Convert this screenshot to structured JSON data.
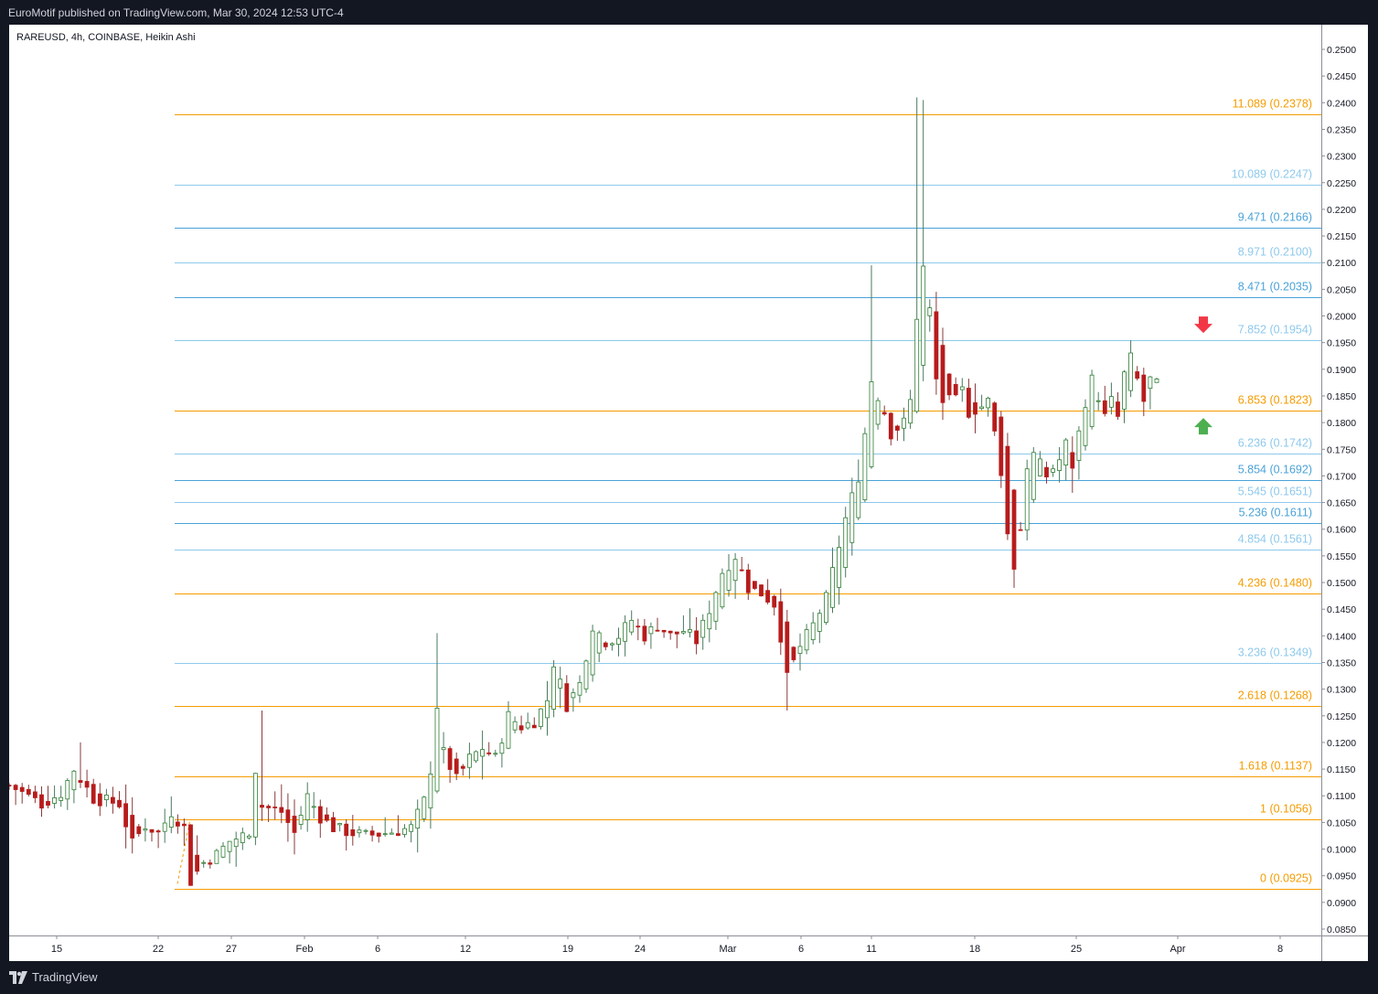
{
  "header": {
    "published": "EuroMotif published on TradingView.com, Mar 30, 2024 12:53 UTC-4"
  },
  "footer": {
    "brand": "TradingView"
  },
  "colors": {
    "up": "#26a69a",
    "down": "#ef5350",
    "candle_up_body": "#2e7d32",
    "candle_down_body": "#b71c1c",
    "fib_orange": "#f59c00",
    "fib_blue": "#4aa3d8",
    "fib_light_blue": "#8ec9ec",
    "arrow_down": "#f23645",
    "arrow_up": "#4caf50"
  },
  "chart_data": {
    "type": "candlestick",
    "title": "RAREUSD, 4h, COINBASE, Heikin Ashi",
    "ylim": [
      0.0825,
      0.2525
    ],
    "y_ticks": [
      "0.2500",
      "0.2450",
      "0.2400",
      "0.2350",
      "0.2300",
      "0.2250",
      "0.2200",
      "0.2150",
      "0.2100",
      "0.2050",
      "0.2000",
      "0.1950",
      "0.1900",
      "0.1850",
      "0.1800",
      "0.1750",
      "0.1700",
      "0.1650",
      "0.1600",
      "0.1550",
      "0.1500",
      "0.1450",
      "0.1400",
      "0.1350",
      "0.1300",
      "0.1250",
      "0.1200",
      "0.1150",
      "0.1100",
      "0.1050",
      "0.1000",
      "0.0950",
      "0.0900",
      "0.0850"
    ],
    "x_ticks": [
      "15",
      "22",
      "27",
      "Feb",
      "6",
      "12",
      "19",
      "24",
      "Mar",
      "6",
      "11",
      "18",
      "25",
      "Apr",
      "8"
    ],
    "fib_levels": [
      {
        "label": "11.089 (0.2378)",
        "value": 0.2378,
        "color": "orange"
      },
      {
        "label": "10.089 (0.2247)",
        "value": 0.2247,
        "color": "lightblue"
      },
      {
        "label": "9.471 (0.2166)",
        "value": 0.2166,
        "color": "blue"
      },
      {
        "label": "8.971 (0.2100)",
        "value": 0.21,
        "color": "lightblue"
      },
      {
        "label": "8.471 (0.2035)",
        "value": 0.2035,
        "color": "blue"
      },
      {
        "label": "7.852 (0.1954)",
        "value": 0.1954,
        "color": "lightblue"
      },
      {
        "label": "6.853 (0.1823)",
        "value": 0.1823,
        "color": "orange"
      },
      {
        "label": "6.236 (0.1742)",
        "value": 0.1742,
        "color": "lightblue"
      },
      {
        "label": "5.854 (0.1692)",
        "value": 0.1692,
        "color": "blue"
      },
      {
        "label": "5.545 (0.1651)",
        "value": 0.1651,
        "color": "lightblue"
      },
      {
        "label": "5.236 (0.1611)",
        "value": 0.1611,
        "color": "blue"
      },
      {
        "label": "4.854 (0.1561)",
        "value": 0.1561,
        "color": "lightblue"
      },
      {
        "label": "4.236 (0.1480)",
        "value": 0.148,
        "color": "orange"
      },
      {
        "label": "3.236 (0.1349)",
        "value": 0.1349,
        "color": "lightblue"
      },
      {
        "label": "2.618 (0.1268)",
        "value": 0.1268,
        "color": "orange"
      },
      {
        "label": "1.618 (0.1137)",
        "value": 0.1137,
        "color": "orange"
      },
      {
        "label": "1 (0.1056)",
        "value": 0.1056,
        "color": "orange"
      },
      {
        "label": "0 (0.0925)",
        "value": 0.0925,
        "color": "orange"
      }
    ],
    "price_path": [
      [
        0,
        0.112
      ],
      [
        5,
        0.1085
      ],
      [
        8,
        0.1105
      ],
      [
        10,
        0.115
      ],
      [
        13,
        0.1095
      ],
      [
        17,
        0.1085
      ],
      [
        19,
        0.101
      ],
      [
        21,
        0.1045
      ],
      [
        23,
        0.103
      ],
      [
        25,
        0.107
      ],
      [
        27,
        0.104
      ],
      [
        28,
        0.094
      ],
      [
        30,
        0.0975
      ],
      [
        32,
        0.099
      ],
      [
        34,
        0.1015
      ],
      [
        36,
        0.1025
      ],
      [
        37,
        0.1035
      ],
      [
        38,
        0.115
      ],
      [
        39,
        0.108
      ],
      [
        42,
        0.107
      ],
      [
        44,
        0.103
      ],
      [
        46,
        0.11
      ],
      [
        48,
        0.106
      ],
      [
        50,
        0.104
      ],
      [
        53,
        0.103
      ],
      [
        55,
        0.1025
      ],
      [
        58,
        0.103
      ],
      [
        62,
        0.104
      ],
      [
        64,
        0.109
      ],
      [
        65,
        0.115
      ],
      [
        66,
        0.127
      ],
      [
        67,
        0.118
      ],
      [
        69,
        0.113
      ],
      [
        71,
        0.117
      ],
      [
        73,
        0.119
      ],
      [
        75,
        0.117
      ],
      [
        77,
        0.125
      ],
      [
        79,
        0.123
      ],
      [
        81,
        0.124
      ],
      [
        83,
        0.128
      ],
      [
        84,
        0.135
      ],
      [
        86,
        0.127
      ],
      [
        88,
        0.131
      ],
      [
        90,
        0.142
      ],
      [
        92,
        0.139
      ],
      [
        94,
        0.14
      ],
      [
        96,
        0.143
      ],
      [
        98,
        0.14
      ],
      [
        100,
        0.142
      ],
      [
        102,
        0.14
      ],
      [
        104,
        0.141
      ],
      [
        106,
        0.139
      ],
      [
        108,
        0.145
      ],
      [
        110,
        0.152
      ],
      [
        112,
        0.155
      ],
      [
        114,
        0.149
      ],
      [
        116,
        0.148
      ],
      [
        118,
        0.146
      ],
      [
        119,
        0.14
      ],
      [
        120,
        0.132
      ],
      [
        122,
        0.138
      ],
      [
        124,
        0.142
      ],
      [
        126,
        0.147
      ],
      [
        127,
        0.152
      ],
      [
        129,
        0.162
      ],
      [
        131,
        0.17
      ],
      [
        132,
        0.178
      ],
      [
        133,
        0.188
      ],
      [
        134,
        0.185
      ],
      [
        135,
        0.182
      ],
      [
        136,
        0.178
      ],
      [
        138,
        0.18
      ],
      [
        139,
        0.184
      ],
      [
        140,
        0.2
      ],
      [
        141,
        0.209
      ],
      [
        142,
        0.201
      ],
      [
        143,
        0.188
      ],
      [
        144,
        0.184
      ],
      [
        146,
        0.184
      ],
      [
        147,
        0.186
      ],
      [
        148,
        0.182
      ],
      [
        150,
        0.183
      ],
      [
        151,
        0.184
      ],
      [
        152,
        0.178
      ],
      [
        153,
        0.171
      ],
      [
        154,
        0.159
      ],
      [
        155,
        0.153
      ],
      [
        156,
        0.16
      ],
      [
        157,
        0.172
      ],
      [
        158,
        0.174
      ],
      [
        160,
        0.17
      ],
      [
        162,
        0.173
      ],
      [
        163,
        0.176
      ],
      [
        164,
        0.172
      ],
      [
        165,
        0.178
      ],
      [
        166,
        0.184
      ],
      [
        167,
        0.188
      ],
      [
        168,
        0.185
      ],
      [
        169,
        0.181
      ],
      [
        170,
        0.184
      ],
      [
        171,
        0.181
      ],
      [
        172,
        0.189
      ],
      [
        173,
        0.192
      ],
      [
        174,
        0.188
      ],
      [
        175,
        0.184
      ],
      [
        176,
        0.188
      ],
      [
        177,
        0.187
      ]
    ]
  }
}
